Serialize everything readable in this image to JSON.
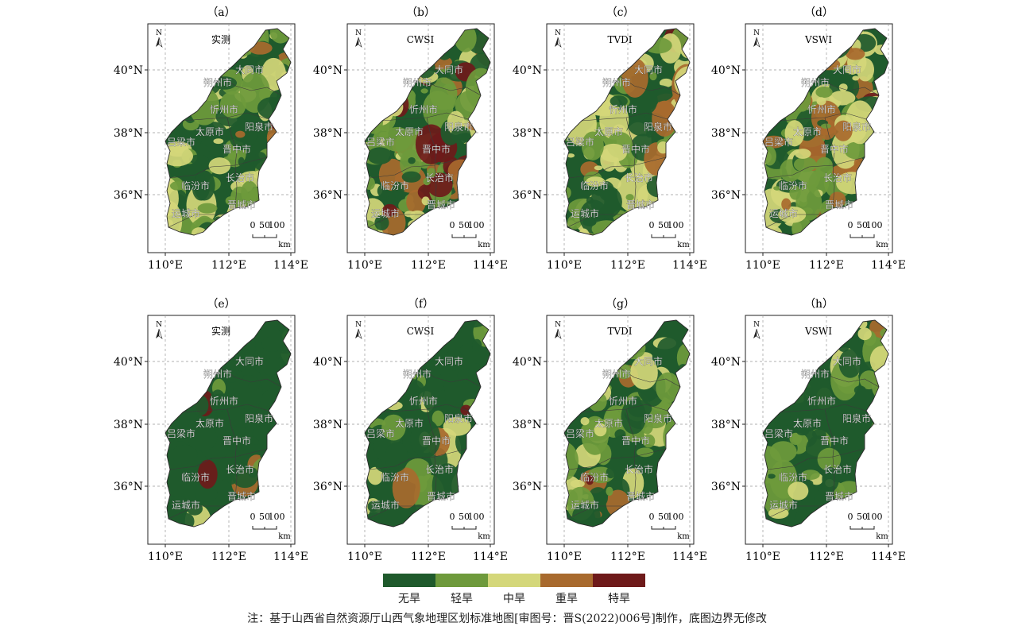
{
  "panels": [
    {
      "label": "（a）",
      "title": "实测"
    },
    {
      "label": "（b）",
      "title": "CWSI"
    },
    {
      "label": "（c）",
      "title": "TVDI"
    },
    {
      "label": "（d）",
      "title": "VSWI"
    },
    {
      "label": "（e）",
      "title": "实测"
    },
    {
      "label": "（f）",
      "title": "CWSI"
    },
    {
      "label": "（g）",
      "title": "TVDI"
    },
    {
      "label": "（h）",
      "title": "VSWI"
    }
  ],
  "lat_ticks": [
    "40°N",
    "38°N",
    "36°N"
  ],
  "lon_ticks": [
    "110°E",
    "112°E",
    "114°E"
  ],
  "north_label": "N",
  "scale_bar": {
    "ticks": [
      "0",
      "50",
      "100"
    ],
    "unit": "km"
  },
  "cities": [
    "大同市",
    "朔州市",
    "忻州市",
    "阳泉市",
    "太原市",
    "吕梁市",
    "晋中市",
    "长治市",
    "临汾市",
    "晋城市",
    "运城市"
  ],
  "legend": {
    "items": [
      {
        "label": "无旱",
        "color": "#1f5a2c"
      },
      {
        "label": "轻旱",
        "color": "#6e9a3c"
      },
      {
        "label": "中旱",
        "color": "#d4d77a"
      },
      {
        "label": "重旱",
        "color": "#a86a2e"
      },
      {
        "label": "特旱",
        "color": "#6e1a1a"
      }
    ]
  },
  "footnote": "注：基于山西省自然资源厅山西气象地理区划标准地图[审图号：晋S(2022)006号]制作，底图边界无修改"
}
